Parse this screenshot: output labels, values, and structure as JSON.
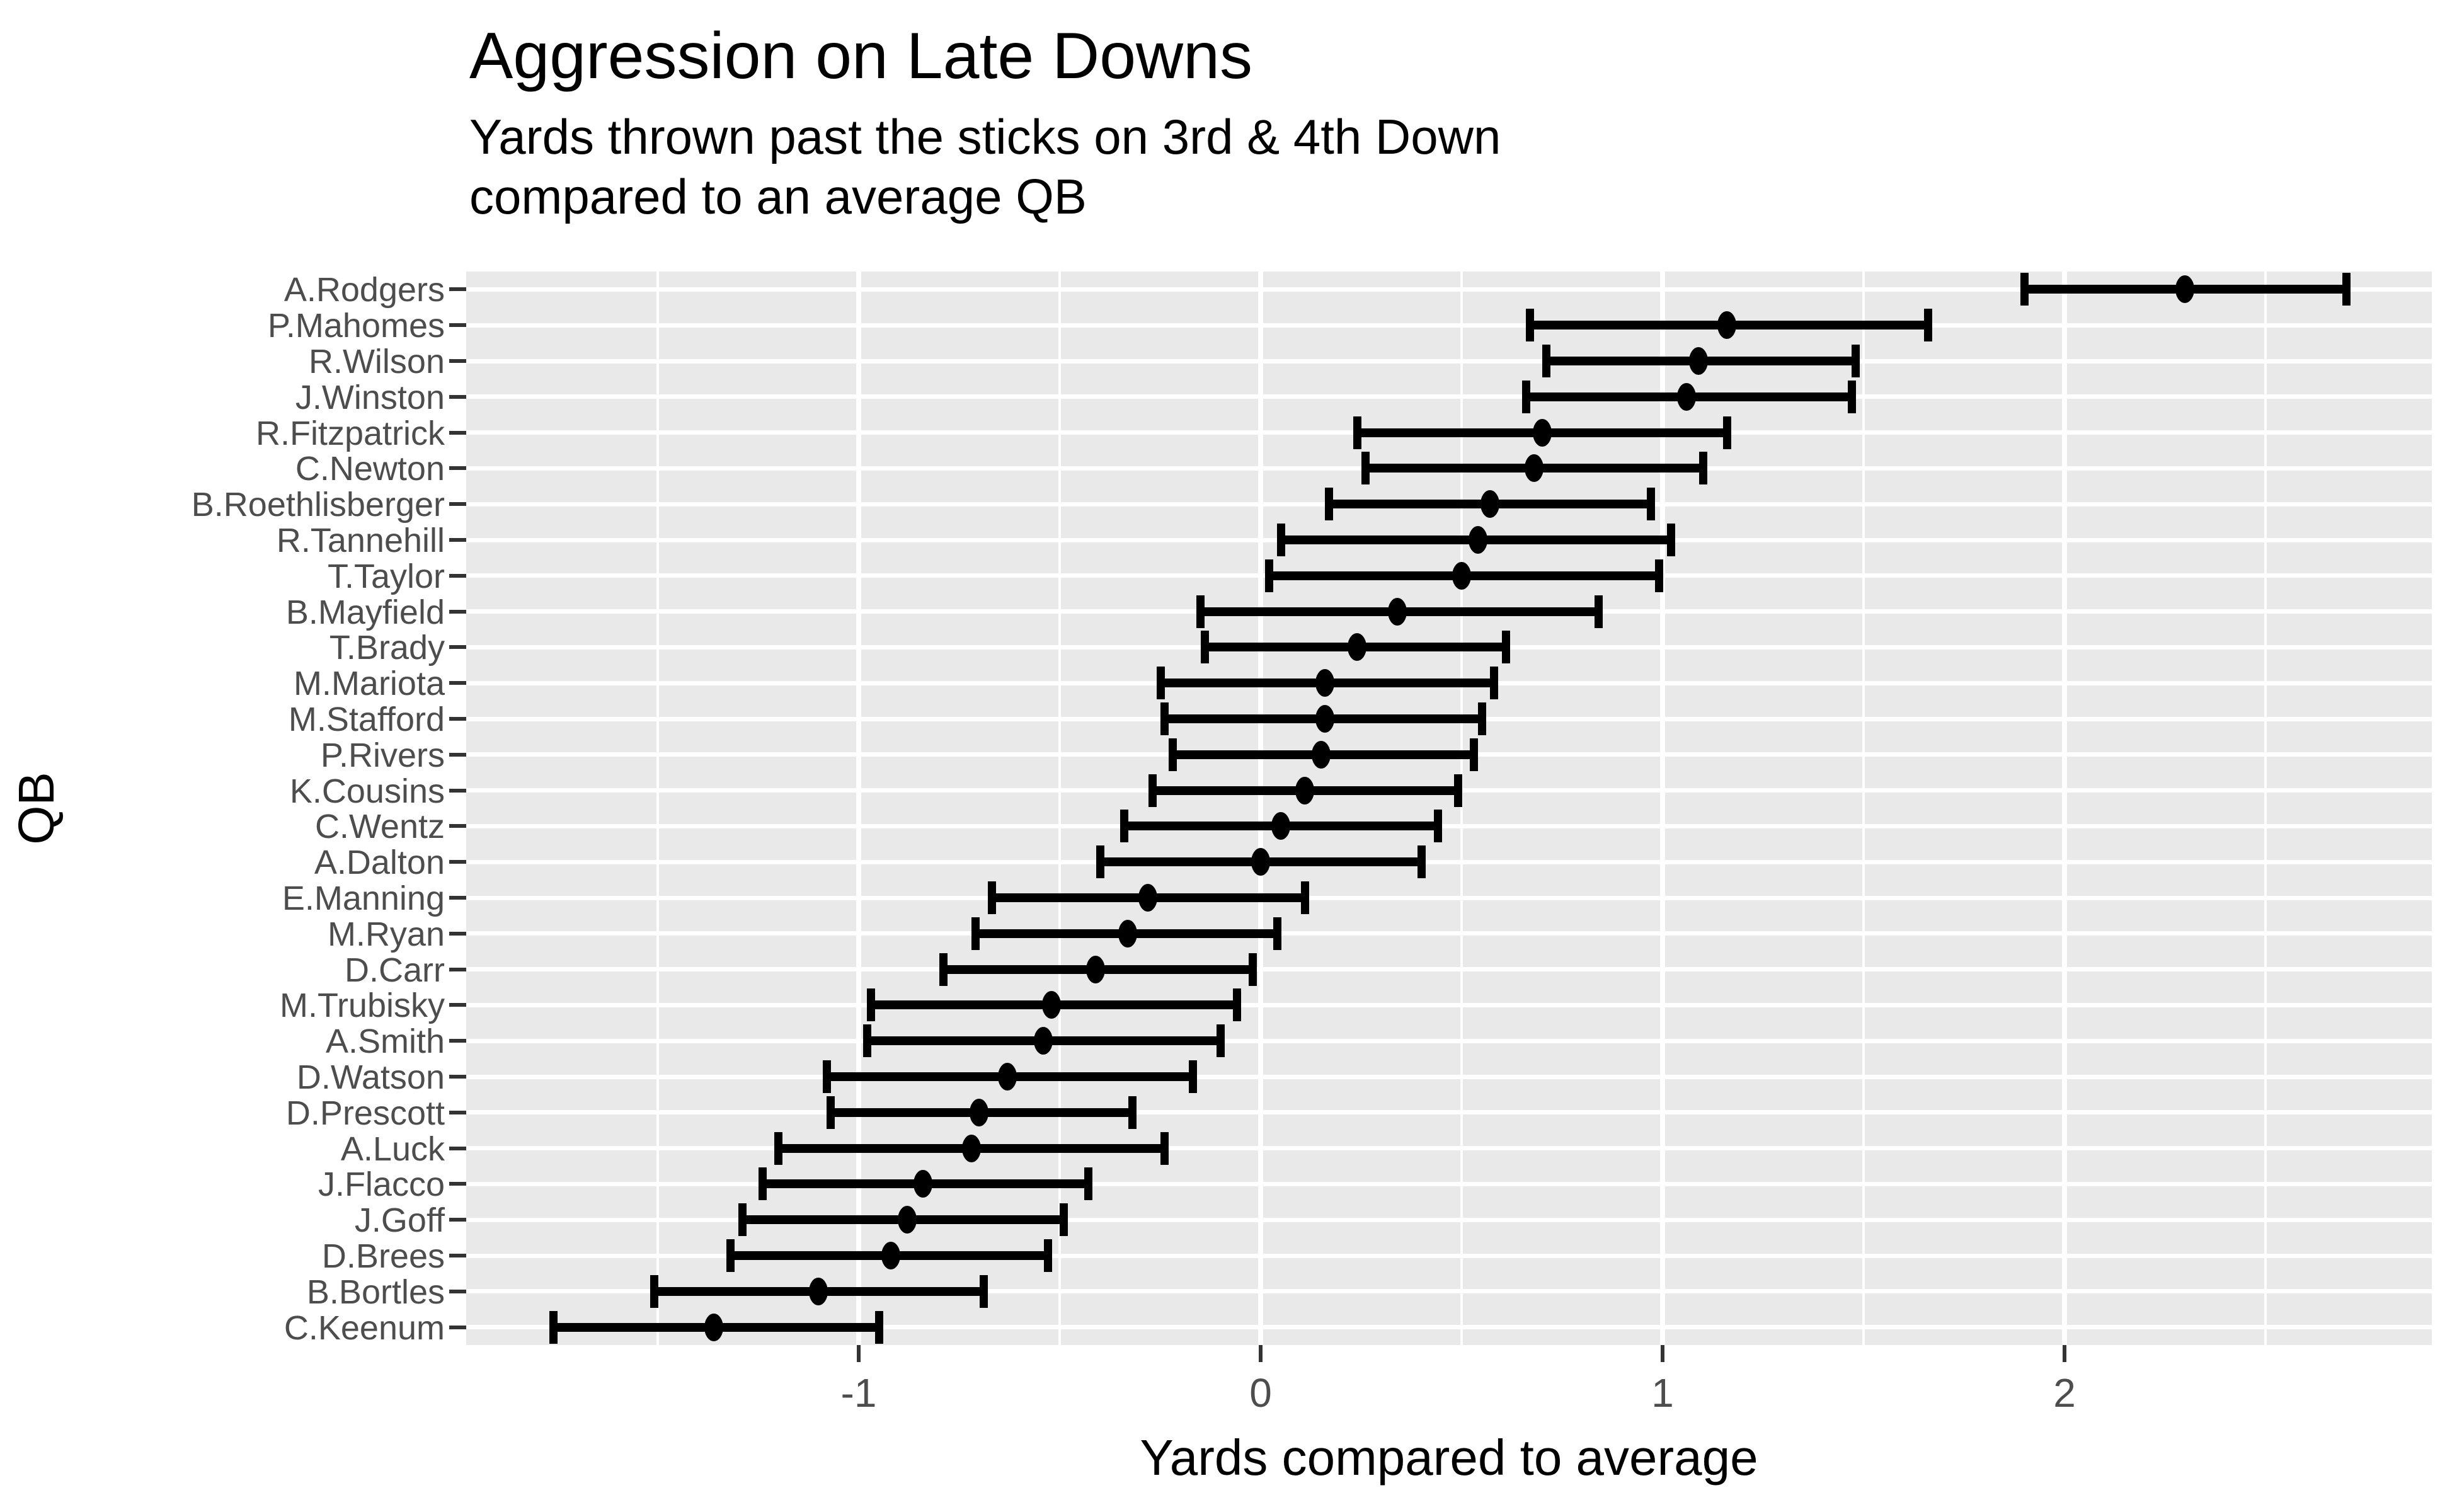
{
  "colors": {
    "background": "#ffffff",
    "panel_background": "#e9e9e9",
    "gridline": "#ffffff",
    "point_and_range": "#000000",
    "tick_mark": "#333333",
    "tick_label": "#4d4d4d",
    "title_text": "#000000"
  },
  "chart_data": {
    "type": "scatter",
    "variant": "horizontal-pointrange",
    "title": "Aggression on Late Downs",
    "subtitle_lines": [
      "Yards thrown past the sticks on 3rd & 4th Down",
      "compared to an average QB"
    ],
    "xlabel": "Yards compared to average",
    "ylabel": "QB",
    "x_ticks": [
      "-1",
      "0",
      "1",
      "2"
    ],
    "x_tick_values": [
      -1,
      0,
      1,
      2
    ],
    "x_grid_minor": [
      -1.5,
      -0.5,
      0.5,
      1.5,
      2.5
    ],
    "xlim": [
      -1.98,
      2.91
    ],
    "grid": "white major/minor vertical lines; white horizontal line at each category",
    "legend_position": "none",
    "categories": [
      "A.Rodgers",
      "P.Mahomes",
      "R.Wilson",
      "J.Winston",
      "R.Fitzpatrick",
      "C.Newton",
      "B.Roethlisberger",
      "R.Tannehill",
      "T.Taylor",
      "B.Mayfield",
      "T.Brady",
      "M.Mariota",
      "M.Stafford",
      "P.Rivers",
      "K.Cousins",
      "C.Wentz",
      "A.Dalton",
      "E.Manning",
      "M.Ryan",
      "D.Carr",
      "M.Trubisky",
      "A.Smith",
      "D.Watson",
      "D.Prescott",
      "A.Luck",
      "J.Flacco",
      "J.Goff",
      "D.Brees",
      "B.Bortles",
      "C.Keenum"
    ],
    "points": [
      {
        "qb": "A.Rodgers",
        "value": 2.3,
        "low": 1.9,
        "high": 2.7
      },
      {
        "qb": "P.Mahomes",
        "value": 1.16,
        "low": 0.67,
        "high": 1.66
      },
      {
        "qb": "R.Wilson",
        "value": 1.09,
        "low": 0.71,
        "high": 1.48
      },
      {
        "qb": "J.Winston",
        "value": 1.06,
        "low": 0.66,
        "high": 1.47
      },
      {
        "qb": "R.Fitzpatrick",
        "value": 0.7,
        "low": 0.24,
        "high": 1.16
      },
      {
        "qb": "C.Newton",
        "value": 0.68,
        "low": 0.26,
        "high": 1.1
      },
      {
        "qb": "B.Roethlisberger",
        "value": 0.57,
        "low": 0.17,
        "high": 0.97
      },
      {
        "qb": "R.Tannehill",
        "value": 0.54,
        "low": 0.05,
        "high": 1.02
      },
      {
        "qb": "T.Taylor",
        "value": 0.5,
        "low": 0.02,
        "high": 0.99
      },
      {
        "qb": "B.Mayfield",
        "value": 0.34,
        "low": -0.15,
        "high": 0.84
      },
      {
        "qb": "T.Brady",
        "value": 0.24,
        "low": -0.14,
        "high": 0.61
      },
      {
        "qb": "M.Mariota",
        "value": 0.16,
        "low": -0.25,
        "high": 0.58
      },
      {
        "qb": "M.Stafford",
        "value": 0.16,
        "low": -0.24,
        "high": 0.55
      },
      {
        "qb": "P.Rivers",
        "value": 0.15,
        "low": -0.22,
        "high": 0.53
      },
      {
        "qb": "K.Cousins",
        "value": 0.11,
        "low": -0.27,
        "high": 0.49
      },
      {
        "qb": "C.Wentz",
        "value": 0.05,
        "low": -0.34,
        "high": 0.44
      },
      {
        "qb": "A.Dalton",
        "value": 0.0,
        "low": -0.4,
        "high": 0.4
      },
      {
        "qb": "E.Manning",
        "value": -0.28,
        "low": -0.67,
        "high": 0.11
      },
      {
        "qb": "M.Ryan",
        "value": -0.33,
        "low": -0.71,
        "high": 0.04
      },
      {
        "qb": "D.Carr",
        "value": -0.41,
        "low": -0.79,
        "high": -0.02
      },
      {
        "qb": "M.Trubisky",
        "value": -0.52,
        "low": -0.97,
        "high": -0.06
      },
      {
        "qb": "A.Smith",
        "value": -0.54,
        "low": -0.98,
        "high": -0.1
      },
      {
        "qb": "D.Watson",
        "value": -0.63,
        "low": -1.08,
        "high": -0.17
      },
      {
        "qb": "D.Prescott",
        "value": -0.7,
        "low": -1.07,
        "high": -0.32
      },
      {
        "qb": "A.Luck",
        "value": -0.72,
        "low": -1.2,
        "high": -0.24
      },
      {
        "qb": "J.Flacco",
        "value": -0.84,
        "low": -1.24,
        "high": -0.43
      },
      {
        "qb": "J.Goff",
        "value": -0.88,
        "low": -1.29,
        "high": -0.49
      },
      {
        "qb": "D.Brees",
        "value": -0.92,
        "low": -1.32,
        "high": -0.53
      },
      {
        "qb": "B.Bortles",
        "value": -1.1,
        "low": -1.51,
        "high": -0.69
      },
      {
        "qb": "C.Keenum",
        "value": -1.36,
        "low": -1.76,
        "high": -0.95
      }
    ]
  }
}
